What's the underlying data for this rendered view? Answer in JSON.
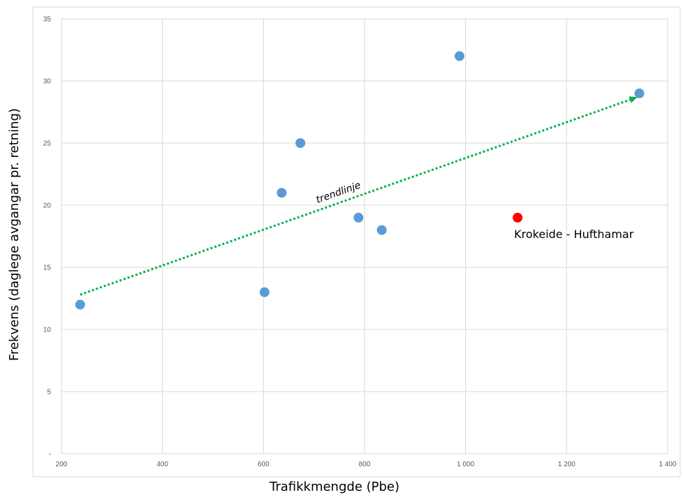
{
  "chart_data": {
    "type": "scatter",
    "title": "",
    "xlabel": "Trafikkmengde (Pbe)",
    "ylabel": "Frekvens (daglege avgangar pr. retning)",
    "xlim": [
      200,
      1400
    ],
    "ylim": [
      0,
      35
    ],
    "x_ticks": [
      "200",
      "400",
      "600",
      "800",
      "1 000",
      "1 200",
      "1 400"
    ],
    "y_ticks": [
      "-",
      "5",
      "10",
      "15",
      "20",
      "25",
      "30",
      "35"
    ],
    "grid": true,
    "series": [
      {
        "color": "#5b9bd5",
        "points": [
          {
            "x": 237,
            "y": 12
          },
          {
            "x": 602,
            "y": 13
          },
          {
            "x": 636,
            "y": 21
          },
          {
            "x": 673,
            "y": 25
          },
          {
            "x": 788,
            "y": 19
          },
          {
            "x": 834,
            "y": 18
          },
          {
            "x": 988,
            "y": 32
          },
          {
            "x": 1344,
            "y": 29
          }
        ]
      },
      {
        "color": "#ff0000",
        "points": [
          {
            "x": 1103,
            "y": 19,
            "label": "Krokeide - Hufthamar"
          }
        ]
      }
    ],
    "trendline": {
      "label": "trendlinje",
      "color": "#00b050",
      "from": {
        "x": 237,
        "y": 12.8
      },
      "to": {
        "x": 1340,
        "y": 28.7
      }
    }
  }
}
